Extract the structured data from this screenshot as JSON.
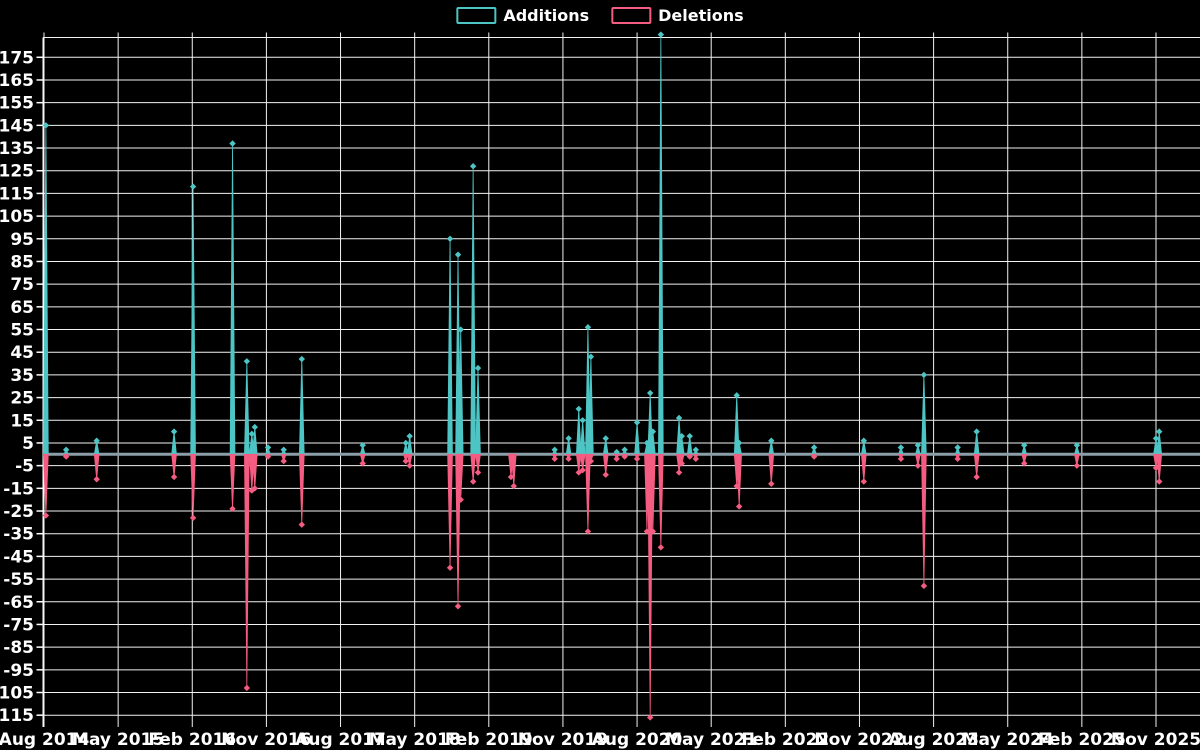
{
  "legend": {
    "additions_label": "Additions",
    "deletions_label": "Deletions"
  },
  "colors": {
    "additions": "#4ec5c5",
    "deletions": "#f45c81",
    "zero_line": "#8c9fa8",
    "grid": "#f2f2f2",
    "background": "#000000",
    "text": "#ffffff"
  },
  "chart_data": {
    "type": "line",
    "subtype": "additions-deletions-spike-chart",
    "title": "",
    "xlabel": "",
    "ylabel": "",
    "grid": true,
    "legend_position": "top-center",
    "x_tick_labels": [
      "Aug 2014",
      "May 2015",
      "Feb 2016",
      "Nov 2016",
      "Aug 2017",
      "May 2018",
      "Feb 2019",
      "Nov 2019",
      "Aug 2020",
      "May 2021",
      "Feb 2022",
      "Nov 2022",
      "Aug 2023",
      "May 2024",
      "Feb 2025",
      "Nov 2025"
    ],
    "y_tick_labels": [
      175,
      165,
      155,
      145,
      135,
      125,
      115,
      105,
      95,
      85,
      75,
      65,
      55,
      45,
      35,
      25,
      15,
      5,
      -5,
      -15,
      -25,
      -35,
      -45,
      -55,
      -65,
      -75,
      -85,
      -95,
      -105,
      -115
    ],
    "ylim": [
      -121,
      185
    ],
    "x_start": "2014-08",
    "x_end": "2025-12",
    "series": [
      {
        "name": "Additions",
        "color": "#4ec5c5",
        "sign": "positive"
      },
      {
        "name": "Deletions",
        "color": "#f45c81",
        "sign": "negative"
      }
    ],
    "events": [
      {
        "date": "2014-08-08",
        "additions": 145,
        "deletions": -27
      },
      {
        "date": "2014-10-22",
        "additions": 2,
        "deletions": -1
      },
      {
        "date": "2015-02-13",
        "additions": 6,
        "deletions": -11
      },
      {
        "date": "2015-11-25",
        "additions": 10,
        "deletions": -10
      },
      {
        "date": "2016-02-04",
        "additions": 118,
        "deletions": -28
      },
      {
        "date": "2016-06-28",
        "additions": 137,
        "deletions": -24
      },
      {
        "date": "2016-08-20",
        "additions": 41,
        "deletions": -103
      },
      {
        "date": "2016-09-08",
        "additions": 9,
        "deletions": -16
      },
      {
        "date": "2016-09-19",
        "additions": 12,
        "deletions": -15
      },
      {
        "date": "2016-11-07",
        "additions": 3,
        "deletions": -1
      },
      {
        "date": "2017-01-04",
        "additions": 2,
        "deletions": -3
      },
      {
        "date": "2017-03-10",
        "additions": 42,
        "deletions": -31
      },
      {
        "date": "2017-10-22",
        "additions": 4,
        "deletions": -4
      },
      {
        "date": "2018-03-29",
        "additions": 5,
        "deletions": -3
      },
      {
        "date": "2018-04-13",
        "additions": 8,
        "deletions": -5
      },
      {
        "date": "2018-09-10",
        "additions": 95,
        "deletions": -50
      },
      {
        "date": "2018-10-09",
        "additions": 88,
        "deletions": -67
      },
      {
        "date": "2018-10-19",
        "additions": 55,
        "deletions": -20
      },
      {
        "date": "2018-12-04",
        "additions": 127,
        "deletions": -12
      },
      {
        "date": "2018-12-22",
        "additions": 38,
        "deletions": -8
      },
      {
        "date": "2019-04-22",
        "additions": 0,
        "deletions": -10
      },
      {
        "date": "2019-05-02",
        "additions": 0,
        "deletions": -14
      },
      {
        "date": "2019-10-01",
        "additions": 2,
        "deletions": -2
      },
      {
        "date": "2019-11-22",
        "additions": 7,
        "deletions": -2
      },
      {
        "date": "2019-12-29",
        "additions": 20,
        "deletions": -8
      },
      {
        "date": "2020-01-13",
        "additions": 15,
        "deletions": -7
      },
      {
        "date": "2020-02-02",
        "additions": 56,
        "deletions": -34
      },
      {
        "date": "2020-02-13",
        "additions": 43,
        "deletions": -3
      },
      {
        "date": "2020-04-07",
        "additions": 7,
        "deletions": -9
      },
      {
        "date": "2020-05-17",
        "additions": 1,
        "deletions": -2
      },
      {
        "date": "2020-06-16",
        "additions": 2,
        "deletions": -1
      },
      {
        "date": "2020-08-01",
        "additions": 14,
        "deletions": -2
      },
      {
        "date": "2020-09-07",
        "additions": 5,
        "deletions": -34
      },
      {
        "date": "2020-09-19",
        "additions": 27,
        "deletions": -116
      },
      {
        "date": "2020-09-29",
        "additions": 10,
        "deletions": -34
      },
      {
        "date": "2020-10-28",
        "additions": 185,
        "deletions": -41
      },
      {
        "date": "2021-01-04",
        "additions": 16,
        "deletions": -8
      },
      {
        "date": "2021-01-14",
        "additions": 8,
        "deletions": -4
      },
      {
        "date": "2021-02-13",
        "additions": 8,
        "deletions": -1
      },
      {
        "date": "2021-03-05",
        "additions": 2,
        "deletions": -2
      },
      {
        "date": "2021-08-04",
        "additions": 26,
        "deletions": -14
      },
      {
        "date": "2021-08-13",
        "additions": 5,
        "deletions": -23
      },
      {
        "date": "2021-12-10",
        "additions": 6,
        "deletions": -13
      },
      {
        "date": "2022-05-16",
        "additions": 3,
        "deletions": -1
      },
      {
        "date": "2022-11-17",
        "additions": 6,
        "deletions": -12
      },
      {
        "date": "2023-04-02",
        "additions": 3,
        "deletions": -2
      },
      {
        "date": "2023-06-04",
        "additions": 4,
        "deletions": -5
      },
      {
        "date": "2023-06-26",
        "additions": 35,
        "deletions": -58
      },
      {
        "date": "2023-10-29",
        "additions": 3,
        "deletions": -2
      },
      {
        "date": "2024-01-08",
        "additions": 10,
        "deletions": -10
      },
      {
        "date": "2024-07-01",
        "additions": 4,
        "deletions": -4
      },
      {
        "date": "2025-01-13",
        "additions": 4,
        "deletions": -5
      },
      {
        "date": "2025-11-01",
        "additions": 7,
        "deletions": -6
      },
      {
        "date": "2025-11-13",
        "additions": 10,
        "deletions": -12
      }
    ]
  }
}
